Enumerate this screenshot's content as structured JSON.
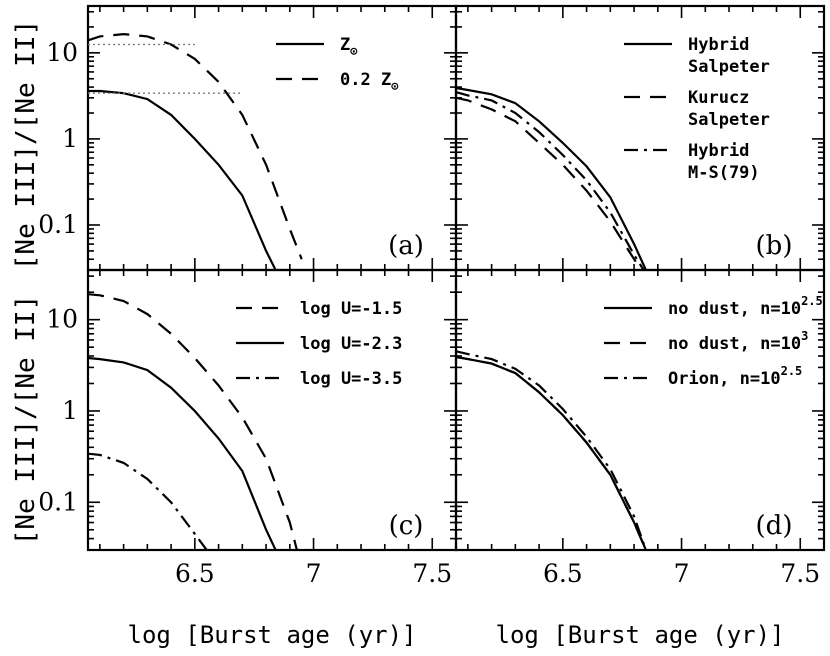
{
  "axes": {
    "ylabel": "[Ne III]/[Ne II]",
    "xlabel": "log [Burst age (yr)]",
    "x_ticks": [
      "6.5",
      "7",
      "7.5"
    ],
    "y_ticks": [
      "0.1",
      "1",
      "10"
    ]
  },
  "chart_data": [
    {
      "panel": "(a)",
      "type": "line",
      "xlim": [
        6.05,
        7.6
      ],
      "ylim": [
        0.03,
        35
      ],
      "yscale": "log",
      "legend": [
        {
          "label": "Z",
          "sub": "⊙",
          "dash": "solid"
        },
        {
          "label": "0.2 Z",
          "sub": "⊙",
          "dash": "dashed"
        }
      ],
      "series": [
        {
          "dash": "solid",
          "x": [
            6.05,
            6.1,
            6.2,
            6.3,
            6.4,
            6.5,
            6.6,
            6.7,
            6.8,
            6.84
          ],
          "y": [
            3.6,
            3.6,
            3.4,
            2.9,
            1.9,
            1.0,
            0.5,
            0.22,
            0.05,
            0.03
          ]
        },
        {
          "dash": "dashed",
          "x": [
            6.05,
            6.1,
            6.2,
            6.3,
            6.4,
            6.5,
            6.6,
            6.7,
            6.8,
            6.9,
            6.95
          ],
          "y": [
            14,
            15.5,
            16.5,
            15.5,
            12.5,
            8.5,
            4.6,
            1.9,
            0.5,
            0.09,
            0.04
          ]
        },
        {
          "dash": "dotted",
          "x": [
            6.05,
            6.5
          ],
          "y": [
            12.5,
            12.5
          ]
        },
        {
          "dash": "dotted",
          "x": [
            6.05,
            6.7
          ],
          "y": [
            3.4,
            3.4
          ]
        }
      ]
    },
    {
      "panel": "(b)",
      "type": "line",
      "xlim": [
        6.05,
        7.6
      ],
      "ylim": [
        0.03,
        35
      ],
      "yscale": "log",
      "legend": [
        {
          "label": "Hybrid",
          "label2": "Salpeter",
          "dash": "solid"
        },
        {
          "label": "Kurucz",
          "label2": "Salpeter",
          "dash": "dashed"
        },
        {
          "label": "Hybrid",
          "label2": "M-S(79)",
          "dash": "dashdot"
        }
      ],
      "series": [
        {
          "dash": "solid",
          "x": [
            6.05,
            6.1,
            6.2,
            6.3,
            6.4,
            6.5,
            6.6,
            6.7,
            6.8,
            6.85
          ],
          "y": [
            3.9,
            3.7,
            3.3,
            2.6,
            1.6,
            0.9,
            0.48,
            0.21,
            0.06,
            0.03
          ]
        },
        {
          "dash": "dashed",
          "x": [
            6.05,
            6.1,
            6.2,
            6.3,
            6.4,
            6.5,
            6.6,
            6.7,
            6.8,
            6.83
          ],
          "y": [
            3.0,
            2.8,
            2.2,
            1.6,
            0.9,
            0.5,
            0.25,
            0.11,
            0.04,
            0.03
          ]
        },
        {
          "dash": "dashdot",
          "x": [
            6.05,
            6.1,
            6.2,
            6.3,
            6.4,
            6.5,
            6.6,
            6.7,
            6.8,
            6.84
          ],
          "y": [
            3.5,
            3.2,
            2.8,
            2.0,
            1.2,
            0.65,
            0.33,
            0.14,
            0.045,
            0.03
          ]
        }
      ]
    },
    {
      "panel": "(c)",
      "type": "line",
      "xlim": [
        6.05,
        7.6
      ],
      "ylim": [
        0.03,
        35
      ],
      "yscale": "log",
      "legend": [
        {
          "label": "log U=-1.5",
          "dash": "dashed"
        },
        {
          "label": "log U=-2.3",
          "dash": "solid"
        },
        {
          "label": "log U=-3.5",
          "dash": "dashdot"
        }
      ],
      "series": [
        {
          "dash": "dashed",
          "x": [
            6.05,
            6.1,
            6.2,
            6.3,
            6.4,
            6.5,
            6.6,
            6.7,
            6.8,
            6.9,
            6.93
          ],
          "y": [
            19,
            18.5,
            16,
            11.5,
            7.0,
            3.8,
            1.9,
            0.85,
            0.3,
            0.06,
            0.03
          ]
        },
        {
          "dash": "solid",
          "x": [
            6.05,
            6.1,
            6.2,
            6.3,
            6.4,
            6.5,
            6.6,
            6.7,
            6.8,
            6.84
          ],
          "y": [
            3.8,
            3.7,
            3.4,
            2.8,
            1.8,
            1.0,
            0.5,
            0.22,
            0.05,
            0.03
          ]
        },
        {
          "dash": "dashdot",
          "x": [
            6.05,
            6.1,
            6.2,
            6.3,
            6.4,
            6.5,
            6.55
          ],
          "y": [
            0.34,
            0.33,
            0.27,
            0.18,
            0.1,
            0.045,
            0.03
          ]
        }
      ]
    },
    {
      "panel": "(d)",
      "type": "line",
      "xlim": [
        6.05,
        7.6
      ],
      "ylim": [
        0.03,
        35
      ],
      "yscale": "log",
      "legend": [
        {
          "label": "no dust, n=10",
          "sup": "2.5",
          "dash": "solid"
        },
        {
          "label": "no dust, n=10",
          "sup": "3",
          "dash": "dashed"
        },
        {
          "label": "Orion, n=10",
          "sup": "2.5",
          "dash": "dashdot"
        }
      ],
      "series": [
        {
          "dash": "solid",
          "x": [
            6.05,
            6.1,
            6.2,
            6.3,
            6.4,
            6.5,
            6.6,
            6.7,
            6.8,
            6.85
          ],
          "y": [
            3.9,
            3.7,
            3.3,
            2.6,
            1.6,
            0.9,
            0.45,
            0.2,
            0.06,
            0.03
          ]
        },
        {
          "dash": "dashed",
          "x": [
            6.05,
            6.1,
            6.2,
            6.3,
            6.4,
            6.5,
            6.6,
            6.7,
            6.8,
            6.85
          ],
          "y": [
            3.9,
            3.7,
            3.3,
            2.6,
            1.6,
            0.9,
            0.45,
            0.2,
            0.06,
            0.03
          ]
        },
        {
          "dash": "dashdot",
          "x": [
            6.05,
            6.1,
            6.2,
            6.3,
            6.4,
            6.5,
            6.6,
            6.7,
            6.8,
            6.85
          ],
          "y": [
            4.5,
            4.2,
            3.7,
            2.9,
            1.9,
            1.05,
            0.52,
            0.23,
            0.07,
            0.03
          ]
        }
      ]
    }
  ]
}
